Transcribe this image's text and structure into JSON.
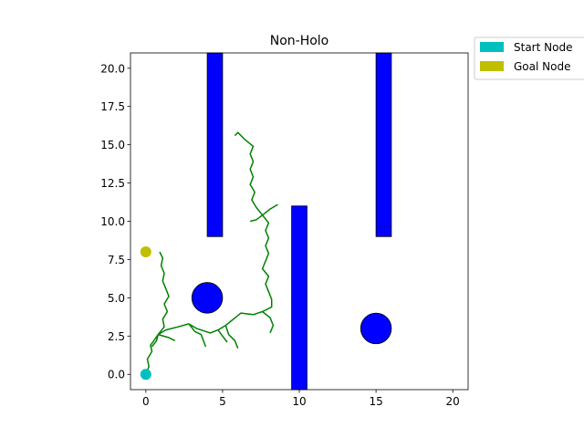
{
  "chart_data": {
    "type": "scatter",
    "title": "Non-Holo",
    "xlabel": "",
    "ylabel": "",
    "xlim": [
      -1,
      21
    ],
    "ylim": [
      -1,
      21
    ],
    "x_ticks": [
      0,
      5,
      10,
      15,
      20
    ],
    "y_ticks": [
      0.0,
      2.5,
      5.0,
      7.5,
      10.0,
      12.5,
      15.0,
      17.5,
      20.0
    ],
    "x_tick_labels": [
      "0",
      "5",
      "10",
      "15",
      "20"
    ],
    "y_tick_labels": [
      "0.0",
      "2.5",
      "5.0",
      "7.5",
      "10.0",
      "12.5",
      "15.0",
      "17.5",
      "20.0"
    ],
    "grid": false,
    "legend_position": "outside-top-right",
    "legend": [
      {
        "label": "Start Node",
        "color": "#00bfbf"
      },
      {
        "label": "Goal Node",
        "color": "#bfbf00"
      }
    ],
    "obstacles": {
      "color": "#0000ff",
      "rectangles": [
        {
          "x0": 4,
          "x1": 5,
          "y0": 9,
          "y1": 21
        },
        {
          "x0": 9.5,
          "x1": 10.5,
          "y0": -1,
          "y1": 11
        },
        {
          "x0": 15,
          "x1": 16,
          "y0": 9,
          "y1": 21
        }
      ],
      "circles": [
        {
          "cx": 4,
          "cy": 5,
          "r": 1
        },
        {
          "cx": 15,
          "cy": 3,
          "r": 1
        }
      ]
    },
    "start": {
      "x": 0,
      "y": 0,
      "color": "#00bfbf"
    },
    "goal": {
      "x": 0,
      "y": 8,
      "color": "#bfbf00"
    },
    "tree_color": "#008000",
    "tree_paths": [
      [
        [
          0,
          0
        ],
        [
          0.2,
          0.5
        ],
        [
          0.1,
          1.0
        ],
        [
          0.4,
          1.5
        ],
        [
          0.3,
          1.9
        ],
        [
          0.6,
          2.3
        ],
        [
          0.8,
          2.6
        ]
      ],
      [
        [
          0.8,
          2.6
        ],
        [
          1.3,
          2.9
        ],
        [
          2.1,
          3.1
        ],
        [
          2.8,
          3.3
        ]
      ],
      [
        [
          0.8,
          2.6
        ],
        [
          1.2,
          3.1
        ],
        [
          1.1,
          3.6
        ],
        [
          1.4,
          4.1
        ],
        [
          1.2,
          4.6
        ],
        [
          1.5,
          5.1
        ],
        [
          1.3,
          5.6
        ],
        [
          1.1,
          6.1
        ],
        [
          1.2,
          6.6
        ],
        [
          1.0,
          7.1
        ],
        [
          1.1,
          7.6
        ],
        [
          0.9,
          8.0
        ]
      ],
      [
        [
          0.8,
          2.6
        ],
        [
          1.5,
          2.4
        ],
        [
          1.9,
          2.2
        ]
      ],
      [
        [
          0.8,
          2.6
        ],
        [
          0.7,
          2.2
        ],
        [
          0.4,
          1.8
        ]
      ],
      [
        [
          2.8,
          3.3
        ],
        [
          3.2,
          2.8
        ],
        [
          3.6,
          2.6
        ],
        [
          3.9,
          1.8
        ]
      ],
      [
        [
          2.8,
          3.3
        ],
        [
          3.3,
          3.0
        ],
        [
          4.2,
          2.7
        ],
        [
          4.7,
          2.9
        ]
      ],
      [
        [
          4.7,
          2.9
        ],
        [
          5.2,
          3.2
        ],
        [
          5.7,
          3.6
        ],
        [
          6.2,
          4.0
        ],
        [
          7.0,
          3.9
        ],
        [
          7.6,
          4.1
        ]
      ],
      [
        [
          5.2,
          3.2
        ],
        [
          5.4,
          2.6
        ],
        [
          5.8,
          2.2
        ],
        [
          6.0,
          1.7
        ]
      ],
      [
        [
          4.7,
          2.9
        ],
        [
          5.0,
          2.5
        ],
        [
          5.3,
          2.1
        ]
      ],
      [
        [
          7.6,
          4.1
        ],
        [
          8.1,
          3.7
        ],
        [
          8.3,
          3.2
        ],
        [
          8.1,
          2.7
        ]
      ],
      [
        [
          7.6,
          4.1
        ],
        [
          8.2,
          4.4
        ],
        [
          8.2,
          4.9
        ],
        [
          8.0,
          5.4
        ],
        [
          7.8,
          5.9
        ],
        [
          8.0,
          6.4
        ],
        [
          7.6,
          6.9
        ],
        [
          7.8,
          7.4
        ],
        [
          8.0,
          7.9
        ],
        [
          7.8,
          8.4
        ],
        [
          8.0,
          8.9
        ],
        [
          7.8,
          9.4
        ],
        [
          8.0,
          9.9
        ],
        [
          7.6,
          10.4
        ],
        [
          7.2,
          10.9
        ],
        [
          6.9,
          11.4
        ],
        [
          7.1,
          11.9
        ],
        [
          6.8,
          12.4
        ],
        [
          7.0,
          12.9
        ],
        [
          6.8,
          13.4
        ],
        [
          7.0,
          13.9
        ],
        [
          6.8,
          14.4
        ],
        [
          7.0,
          14.9
        ],
        [
          6.5,
          15.3
        ],
        [
          6.0,
          15.8
        ],
        [
          5.8,
          15.6
        ]
      ],
      [
        [
          7.6,
          10.4
        ],
        [
          7.2,
          10.1
        ],
        [
          6.8,
          10.0
        ]
      ],
      [
        [
          7.6,
          10.4
        ],
        [
          8.1,
          10.8
        ],
        [
          8.6,
          11.1
        ]
      ]
    ]
  }
}
